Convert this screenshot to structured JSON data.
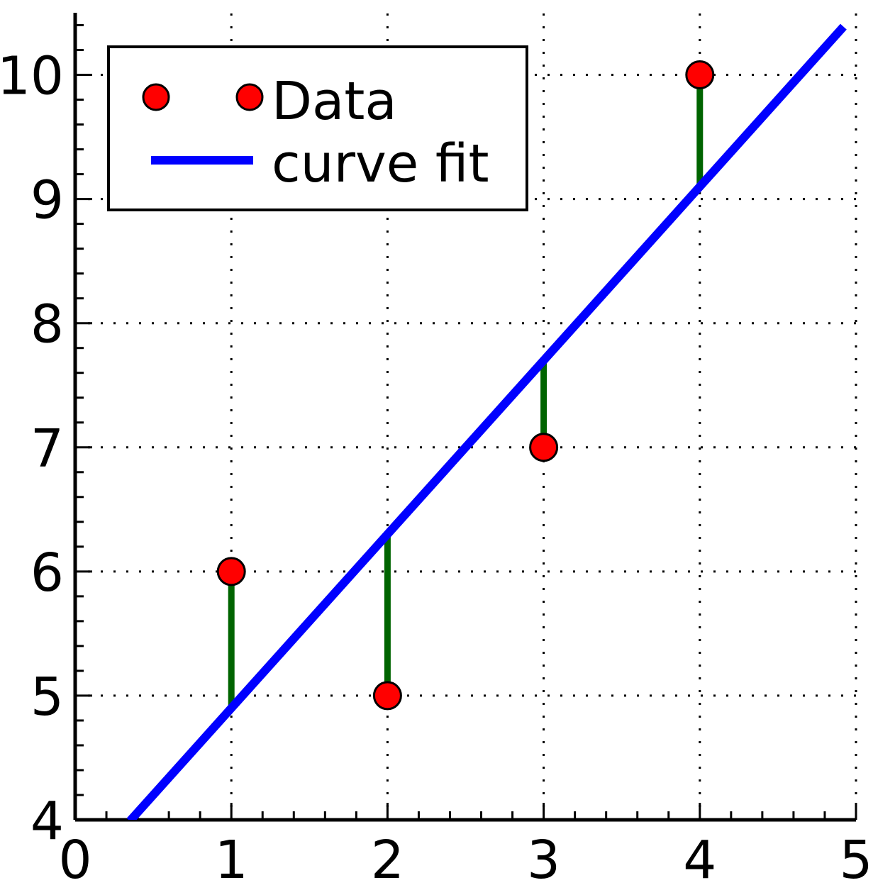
{
  "chart_data": {
    "type": "scatter",
    "title": "",
    "xlabel": "",
    "ylabel": "",
    "xlim": [
      0,
      5
    ],
    "ylim": [
      4,
      10.5
    ],
    "x_ticks": [
      "0",
      "1",
      "2",
      "3",
      "4",
      "5"
    ],
    "y_ticks": [
      "4",
      "5",
      "6",
      "7",
      "8",
      "9",
      "10"
    ],
    "grid": true,
    "legend_position": "top-left",
    "series": [
      {
        "name": "Data",
        "kind": "points",
        "color": "#ff0000",
        "points": [
          {
            "x": 1,
            "y": 6
          },
          {
            "x": 2,
            "y": 5
          },
          {
            "x": 3,
            "y": 7
          },
          {
            "x": 4,
            "y": 10
          }
        ]
      },
      {
        "name": "curve fit",
        "kind": "line",
        "color": "#0000ff",
        "slope": 1.4,
        "intercept": 3.5,
        "x_range": [
          0.35,
          4.92
        ]
      }
    ],
    "residuals": {
      "color": "#006400",
      "segments": [
        {
          "x": 1,
          "y_from": 6,
          "y_to": 4.9
        },
        {
          "x": 2,
          "y_from": 5,
          "y_to": 6.3
        },
        {
          "x": 3,
          "y_from": 7,
          "y_to": 7.7
        },
        {
          "x": 4,
          "y_from": 10,
          "y_to": 9.1
        }
      ]
    }
  }
}
